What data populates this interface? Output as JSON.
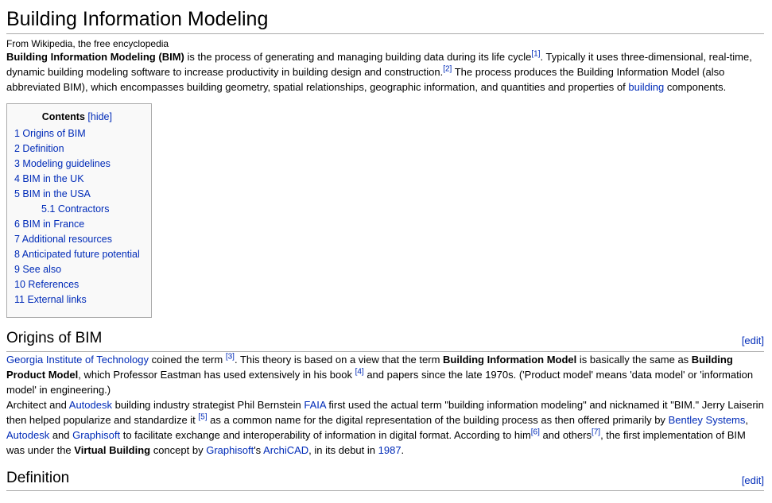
{
  "page": {
    "title": "Building Information Modeling",
    "subtitle": "From Wikipedia, the free encyclopedia"
  },
  "colors": {
    "link": "#002bb8",
    "heading_rule": "#aaaaaa",
    "toc_background": "#f9f9f9",
    "toc_border": "#aaaaaa"
  },
  "lead_paragraph": [
    {
      "t": "Building Information Modeling (BIM)",
      "s": "b"
    },
    {
      "t": " is the process of generating and managing building data during its life cycle",
      "s": "p"
    },
    {
      "t": "[1]",
      "s": "r"
    },
    {
      "t": ". Typically it uses three-dimensional, real-time, dynamic building modeling software to increase productivity in building design and construction.",
      "s": "p"
    },
    {
      "t": "[2]",
      "s": "r"
    },
    {
      "t": " The process produces the Building Information Model (also abbreviated BIM), which encompasses building geometry, spatial relationships, geographic information, and quantities and properties of ",
      "s": "p"
    },
    {
      "t": "building",
      "s": "l"
    },
    {
      "t": " components.",
      "s": "p"
    }
  ],
  "toc": {
    "header": "Contents",
    "hide_label": "[hide]",
    "items": [
      {
        "number": "1",
        "label": "Origins of BIM",
        "level": 1
      },
      {
        "number": "2",
        "label": "Definition",
        "level": 1
      },
      {
        "number": "3",
        "label": "Modeling guidelines",
        "level": 1
      },
      {
        "number": "4",
        "label": "BIM in the UK",
        "level": 1
      },
      {
        "number": "5",
        "label": "BIM in the USA",
        "level": 1
      },
      {
        "number": "5.1",
        "label": "Contractors",
        "level": 2
      },
      {
        "number": "6",
        "label": "BIM in France",
        "level": 1
      },
      {
        "number": "7",
        "label": "Additional resources",
        "level": 1
      },
      {
        "number": "8",
        "label": "Anticipated future potential",
        "level": 1
      },
      {
        "number": "9",
        "label": "See also",
        "level": 1
      },
      {
        "number": "10",
        "label": "References",
        "level": 1
      },
      {
        "number": "11",
        "label": "External links",
        "level": 1
      }
    ]
  },
  "sections": [
    {
      "heading": "Origins of BIM",
      "edit_label": "[edit]",
      "paragraphs": [
        [
          {
            "t": "Georgia Institute of Technology",
            "s": "l"
          },
          {
            "t": " coined the term ",
            "s": "p"
          },
          {
            "t": "[3]",
            "s": "r"
          },
          {
            "t": ". This theory is based on a view that the term ",
            "s": "p"
          },
          {
            "t": "Building Information Model",
            "s": "b"
          },
          {
            "t": " is basically the same as ",
            "s": "p"
          },
          {
            "t": "Building Product Model",
            "s": "b"
          },
          {
            "t": ", which Professor Eastman has used extensively in his book ",
            "s": "p"
          },
          {
            "t": "[4]",
            "s": "r"
          },
          {
            "t": " and papers since the late 1970s. ('Product model' means 'data model' or 'information model' in engineering.)",
            "s": "p"
          }
        ],
        [
          {
            "t": "Architect and ",
            "s": "p"
          },
          {
            "t": "Autodesk",
            "s": "l"
          },
          {
            "t": " building industry strategist Phil Bernstein ",
            "s": "p"
          },
          {
            "t": "FAIA",
            "s": "l"
          },
          {
            "t": " first used the actual term \"building information modeling\" and nicknamed it \"BIM.\" Jerry Laiserin then helped popularize and standardize it ",
            "s": "p"
          },
          {
            "t": "[5]",
            "s": "r"
          },
          {
            "t": " as a common name for the digital representation of the building process as then offered primarily by ",
            "s": "p"
          },
          {
            "t": "Bentley Systems",
            "s": "l"
          },
          {
            "t": ", ",
            "s": "p"
          },
          {
            "t": "Autodesk",
            "s": "l"
          },
          {
            "t": " and ",
            "s": "p"
          },
          {
            "t": "Graphisoft",
            "s": "l"
          },
          {
            "t": " to facilitate exchange and interoperability of information in digital format. According to him",
            "s": "p"
          },
          {
            "t": "[6]",
            "s": "r"
          },
          {
            "t": " and others",
            "s": "p"
          },
          {
            "t": "[7]",
            "s": "r"
          },
          {
            "t": ", the first implementation of BIM was under the ",
            "s": "p"
          },
          {
            "t": "Virtual Building",
            "s": "b"
          },
          {
            "t": " concept by ",
            "s": "p"
          },
          {
            "t": "Graphisoft",
            "s": "l"
          },
          {
            "t": "'s ",
            "s": "p"
          },
          {
            "t": "ArchiCAD",
            "s": "l"
          },
          {
            "t": ", in its debut in ",
            "s": "p"
          },
          {
            "t": "1987",
            "s": "l"
          },
          {
            "t": ".",
            "s": "p"
          }
        ]
      ]
    },
    {
      "heading": "Definition",
      "edit_label": "[edit]",
      "paragraphs": []
    }
  ]
}
